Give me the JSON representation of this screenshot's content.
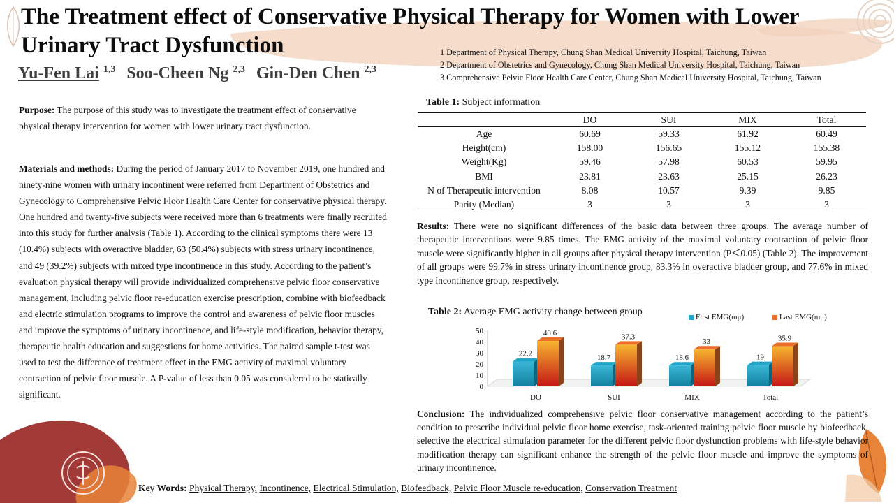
{
  "title": "The Treatment effect of Conservative Physical Therapy for Women with Lower Urinary Tract Dysfunction",
  "authors": [
    {
      "name": "Yu-Fen Lai",
      "sup": "1,3"
    },
    {
      "name": "Soo-Cheen Ng",
      "sup": "2,3"
    },
    {
      "name": "Gin-Den Chen",
      "sup": "2,3"
    }
  ],
  "affiliations": [
    "1 Department of Physical Therapy, Chung Shan Medical University Hospital,  Taichung, Taiwan",
    "2 Department of Obstetrics and Gynecology, Chung Shan Medical University Hospital, Taichung, Taiwan",
    "3 Comprehensive Pelvic Floor Health Care Center, Chung Shan Medical University Hospital,  Taichung, Taiwan"
  ],
  "purpose": {
    "label": "Purpose:",
    "text": " The purpose of this study was to investigate the treatment effect of conservative physical therapy intervention for women with lower urinary tract dysfunction."
  },
  "methods": {
    "label": "Materials and methods:",
    "text": " During the period of January 2017 to November 2019, one hundred and ninety-nine women with urinary incontinent were referred from Department of Obstetrics and Gynecology to Comprehensive Pelvic Floor Health Care Center for conservative physical therapy. One hundred and twenty-five subjects were received more than 6 treatments were finally recruited into this study for further analysis (Table 1). According to the clinical symptoms there were 13 (10.4%) subjects with overactive bladder, 63 (50.4%) subjects with stress urinary incontinence, and 49 (39.2%) subjects with mixed type incontinence in this study. According to the patient’s evaluation physical therapy will provide individualized comprehensive pelvic floor conservative management, including pelvic floor re-education exercise prescription, combine with biofeedback and electric stimulation programs to improve the control and awareness of pelvic floor muscles and improve the symptoms of urinary incontinence, and life-style modification, behavior therapy, therapeutic health education and suggestions for home activities. The paired sample t-test was used to test the difference of treatment effect in the EMG activity of maximal voluntary contraction of pelvic floor muscle. A P-value of less than 0.05 was considered to be statically significant."
  },
  "table1": {
    "label": "Table 1:",
    "caption": " Subject information",
    "headers": [
      "",
      "DO",
      "SUI",
      "MIX",
      "Total"
    ],
    "rows": [
      [
        "Age",
        "60.69",
        "59.33",
        "61.92",
        "60.49"
      ],
      [
        "Height(cm)",
        "158.00",
        "156.65",
        "155.12",
        "155.38"
      ],
      [
        "Weight(Kg)",
        "59.46",
        "57.98",
        "60.53",
        "59.95"
      ],
      [
        "BMI",
        "23.81",
        "23.63",
        "25.15",
        "26.23"
      ],
      [
        "N of Therapeutic  intervention",
        "8.08",
        "10.57",
        "9.39",
        "9.85"
      ],
      [
        "Parity  (Median)",
        "3",
        "3",
        "3",
        "3"
      ]
    ]
  },
  "results": {
    "label": "Results:",
    "text": " There were no significant differences of the basic data between three groups. The average number of therapeutic interventions were 9.85 times. The EMG activity of the maximal voluntary contraction of pelvic floor muscle were significantly higher in all groups after physical therapy intervention (P＜0.05) (Table 2). The improvement of all groups were 99.7% in stress urinary incontinence group, 83.3% in overactive bladder group, and 77.6% in mixed type incontinence group, respectively."
  },
  "table2": {
    "label": "Table 2:",
    "caption": " Average EMG activity change between group"
  },
  "chart_data": {
    "type": "bar",
    "title": "",
    "xlabel": "",
    "ylabel": "",
    "categories": [
      "DO",
      "SUI",
      "MIX",
      "Total"
    ],
    "series": [
      {
        "name": "First EMG(mμ)",
        "values": [
          22.2,
          18.7,
          18.6,
          19
        ],
        "labels": [
          "22.2",
          "18.7",
          "18.6",
          "19"
        ],
        "color": "#1fa6c9"
      },
      {
        "name": "Last EMG(mμ)",
        "values": [
          40.6,
          37.3,
          33,
          35.9
        ],
        "labels": [
          "40.6",
          "37.3",
          "33",
          "35.9"
        ],
        "color": "#e8702a"
      }
    ],
    "ylim": [
      0,
      50
    ],
    "yticks": [
      "0",
      "10",
      "20",
      "30",
      "40",
      "50"
    ],
    "grid": false,
    "legend": "top-right",
    "style": "3d"
  },
  "conclusion": {
    "label": "Conclusion:",
    "text": " The individualized comprehensive pelvic floor conservative management according to the patient’s condition to prescribe individual pelvic floor home exercise, task-oriented training pelvic floor muscle by biofeedback, selective the electrical stimulation parameter for the different pelvic floor dysfunction problems with life-style behavior modification therapy can significant enhance the strength of the pelvic floor muscle and improve the symptoms of urinary incontinence."
  },
  "keywords": {
    "label": "Key Words:",
    "items": [
      "Physical Therapy,",
      "Incontinence,",
      "Electrical Stimulation,",
      "Biofeedback,",
      "Pelvic Floor Muscle re-education,",
      "Conservation Treatment"
    ]
  },
  "colors": {
    "title_band": "#f5dccb",
    "decor_red": "#a23a37",
    "decor_orange": "#e8843a",
    "first_bar": "#1fa6c9",
    "last_bar": "#e8702a"
  },
  "logo": {
    "name": "hospital-seal-logo"
  }
}
